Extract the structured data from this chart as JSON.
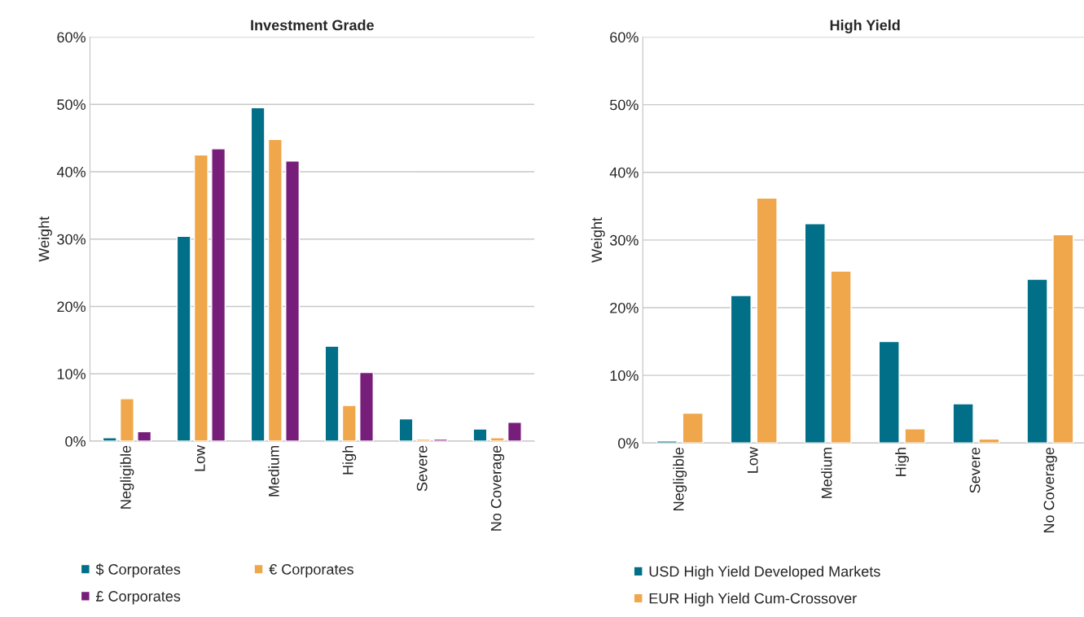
{
  "chart_data": [
    {
      "type": "bar",
      "title": "Investment Grade",
      "ylabel": "Weight",
      "categories": [
        "Negligible",
        "Low",
        "Medium",
        "High",
        "Severe",
        "No Coverage"
      ],
      "series": [
        {
          "name": "$ Corporates",
          "color": "#006f87",
          "values": [
            0.5,
            30.4,
            49.5,
            14.1,
            3.3,
            1.8
          ]
        },
        {
          "name": "€ Corporates",
          "color": "#f0a64a",
          "values": [
            6.3,
            42.5,
            44.8,
            5.3,
            0.3,
            0.5
          ]
        },
        {
          "name": "£ Corporates",
          "color": "#771d7a",
          "values": [
            1.4,
            43.4,
            41.6,
            10.2,
            0.3,
            2.8
          ]
        }
      ],
      "ylim": [
        0,
        60
      ],
      "yticks": [
        {
          "value": 0,
          "label": "0%"
        },
        {
          "value": 10,
          "label": "10%"
        },
        {
          "value": 20,
          "label": "20%"
        },
        {
          "value": 30,
          "label": "30%"
        },
        {
          "value": 40,
          "label": "40%"
        },
        {
          "value": 50,
          "label": "50%"
        },
        {
          "value": 60,
          "label": "60%"
        }
      ],
      "grid": "y",
      "legend": "bottom"
    },
    {
      "type": "bar",
      "title": "High Yield",
      "ylabel": "Weight",
      "categories": [
        "Negligible",
        "Low",
        "Medium",
        "High",
        "Severe",
        "No Coverage"
      ],
      "series": [
        {
          "name": "USD High Yield Developed Markets",
          "color": "#006f87",
          "values": [
            0.3,
            21.8,
            32.4,
            15.0,
            5.8,
            24.2
          ]
        },
        {
          "name": "EUR High Yield Cum-Crossover",
          "color": "#f0a64a",
          "values": [
            4.4,
            36.2,
            25.4,
            2.1,
            0.6,
            30.8
          ]
        }
      ],
      "ylim": [
        0,
        60
      ],
      "yticks": [
        {
          "value": 0,
          "label": "0%"
        },
        {
          "value": 10,
          "label": "10%"
        },
        {
          "value": 20,
          "label": "20%"
        },
        {
          "value": 30,
          "label": "30%"
        },
        {
          "value": 40,
          "label": "40%"
        },
        {
          "value": 50,
          "label": "50%"
        },
        {
          "value": 60,
          "label": "60%"
        }
      ],
      "grid": "y",
      "legend": "bottom"
    }
  ]
}
